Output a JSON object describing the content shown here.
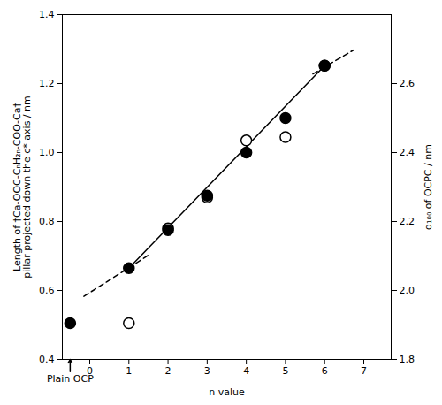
{
  "chart_data": {
    "type": "scatter",
    "x_label": "n value",
    "y_label": "Length of †Ca-OOC-CₙH₂ₙ-COO-Ca†\npillar projected down the c* axis / nm",
    "y2_label": "d₁₀₀ of OCPC / nm",
    "xlim": [
      -0.7,
      7.7
    ],
    "xticks": [
      0,
      1,
      2,
      3,
      4,
      5,
      6,
      7
    ],
    "ylim": [
      0.4,
      1.4
    ],
    "yticks": [
      0.4,
      0.6,
      0.8,
      {
        "value": 1.0,
        "label": "1.0"
      },
      1.2,
      1.4
    ],
    "y2lim": [
      1.8,
      2.8
    ],
    "y2ticks": [
      1.8,
      {
        "value": 2.0,
        "label": "2.0"
      },
      2.2,
      2.4,
      2.6
    ],
    "grid": false,
    "series": [
      {
        "type": "line",
        "line_style": "solid",
        "color": "#000000",
        "x": [
          1.0,
          6.0
        ],
        "values": [
          0.665,
          1.252
        ]
      },
      {
        "type": "line",
        "line_style": "dashed",
        "color": "#000000",
        "x": [
          -0.15,
          1.55
        ],
        "values": [
          0.583,
          0.706
        ]
      },
      {
        "type": "line",
        "line_style": "dashed",
        "color": "#000000",
        "x": [
          5.7,
          6.75
        ],
        "values": [
          1.228,
          1.298
        ]
      },
      {
        "type": "scatter",
        "marker": "open_circle",
        "color": "#000000",
        "x": [
          1,
          2,
          3,
          4,
          5,
          6
        ],
        "values": [
          0.505,
          0.78,
          0.87,
          1.035,
          1.045,
          1.252
        ]
      },
      {
        "type": "scatter",
        "marker": "filled_circle",
        "color": "#000000",
        "x": [
          -0.5,
          1,
          2,
          3,
          4,
          5,
          6
        ],
        "values": [
          0.505,
          0.665,
          0.775,
          0.875,
          1.0,
          1.1,
          1.252
        ]
      }
    ],
    "annotations": [
      {
        "text": "Plain OCP",
        "x": -0.5,
        "y": 0.365,
        "arrow_to": [
          -0.5,
          0.4
        ]
      }
    ]
  }
}
